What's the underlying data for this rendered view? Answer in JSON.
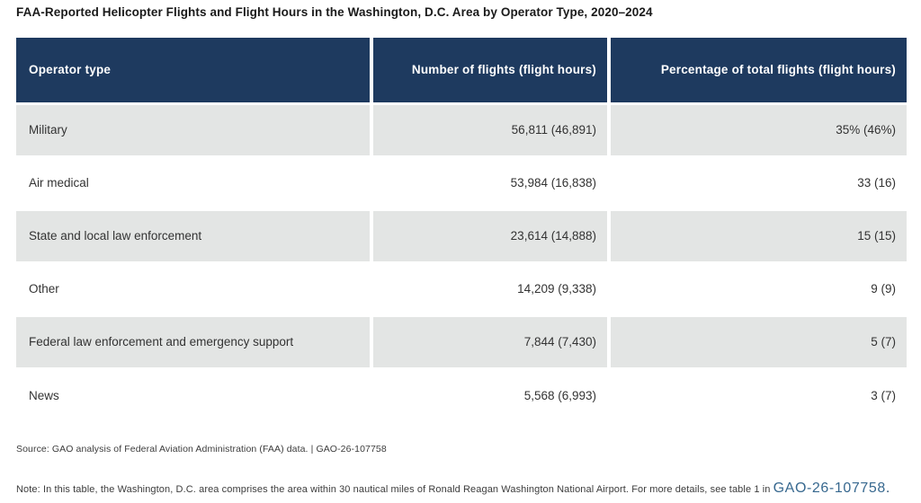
{
  "title": "FAA-Reported Helicopter Flights and Flight Hours in the Washington, D.C. Area by Operator Type, 2020–2024",
  "chart_data": {
    "type": "table",
    "title": "FAA-Reported Helicopter Flights and Flight Hours in the Washington, D.C. Area by Operator Type, 2020–2024",
    "columns": [
      "Operator type",
      "Number of flights (flight hours)",
      "Percentage of total flights (flight hours)"
    ],
    "rows": [
      {
        "operator": "Military",
        "flights": "56,811 (46,891)",
        "percentage": "35% (46%)"
      },
      {
        "operator": "Air medical",
        "flights": "53,984 (16,838)",
        "percentage": "33 (16)"
      },
      {
        "operator": "State and local law enforcement",
        "flights": "23,614 (14,888)",
        "percentage": "15 (15)"
      },
      {
        "operator": "Other",
        "flights": "14,209 (9,338)",
        "percentage": "9 (9)"
      },
      {
        "operator": "Federal law enforcement and emergency support",
        "flights": "7,844 (7,430)",
        "percentage": "5 (7)"
      },
      {
        "operator": "News",
        "flights": "5,568 (6,993)",
        "percentage": "3 (7)"
      }
    ],
    "categories": [
      "Military",
      "Air medical",
      "State and local law enforcement",
      "Other",
      "Federal law enforcement and emergency support",
      "News"
    ],
    "series": [
      {
        "name": "Number of flights",
        "values": [
          56811,
          53984,
          23614,
          14209,
          7844,
          5568
        ]
      },
      {
        "name": "Flight hours",
        "values": [
          46891,
          16838,
          14888,
          9338,
          7430,
          6993
        ]
      },
      {
        "name": "Percentage of total flights",
        "values": [
          35,
          33,
          15,
          9,
          5,
          3
        ]
      },
      {
        "name": "Percentage of total flight hours",
        "values": [
          46,
          16,
          15,
          9,
          7,
          7
        ]
      }
    ]
  },
  "source_line": "Source: GAO analysis of Federal Aviation Administration (FAA) data.  |  GAO-26-107758",
  "note": {
    "prefix": "Note: In this table, the Washington, D.C. area comprises the area within 30 nautical miles of Ronald Reagan Washington National Airport. For more details, see table 1 in ",
    "link_text": "GAO-26-107758",
    "suffix": "."
  },
  "colors": {
    "header_bg": "#1e3a5f",
    "alt_row_bg": "#e3e5e4",
    "link_blue": "#37688f"
  }
}
